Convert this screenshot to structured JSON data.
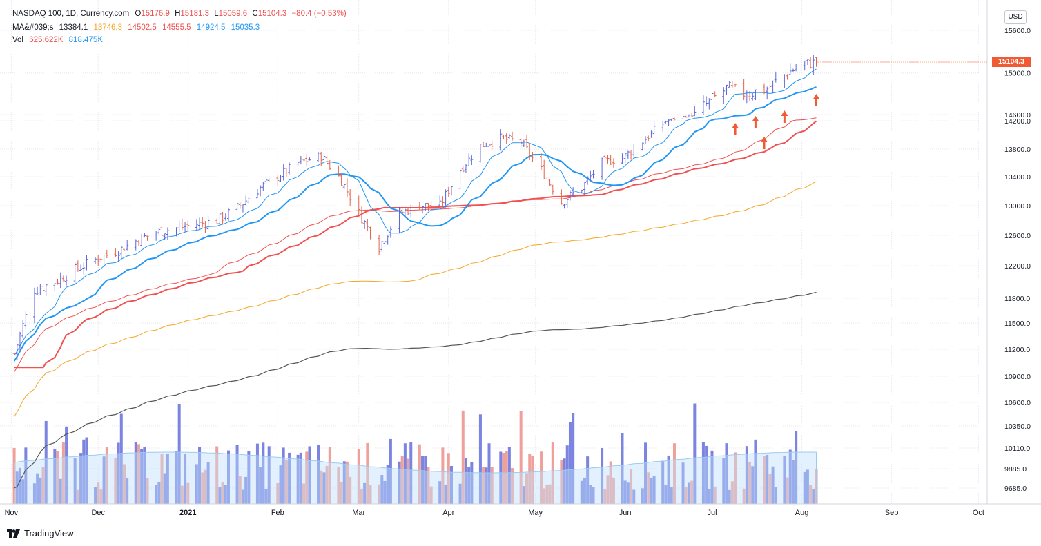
{
  "legend": {
    "symbol": "NASDAQ 100, 1D, Currency.com",
    "o_label": "O",
    "o": "15176.9",
    "h_label": "H",
    "h": "15181.3",
    "l_label": "L",
    "l": "15059.6",
    "c_label": "C",
    "c": "15104.3",
    "change": "−80.4 (−0.53%)",
    "ma_label": "MA&#039;s",
    "ma_values": [
      "13384.1",
      "13746.3",
      "14502.5",
      "14555.5",
      "14924.5",
      "15035.3"
    ],
    "ma_colors": [
      "#131722",
      "#f5a623",
      "#f05050",
      "#f05050",
      "#2196f3",
      "#2196f3"
    ],
    "vol_label": "Vol",
    "vol_values": [
      "625.622K",
      "818.475K"
    ],
    "vol_colors": [
      "#f05050",
      "#2196f3"
    ]
  },
  "currency_badge": "USD",
  "last_price": "15104.3",
  "branding": "TradingView",
  "colors": {
    "up": "#5b65d8",
    "down": "#e2634a",
    "vol_up": "#7b84e0",
    "vol_down": "#f0a09a",
    "ma_fast": "#2196f3",
    "ma_red": "#f05050",
    "ma_orange": "#f5a623",
    "ma_black": "#555555",
    "arrow": "#f05a35",
    "grid": "#e6e8ee"
  },
  "chart_data": {
    "type": "ohlc",
    "title": "NASDAQ 100, 1D, Currency.com",
    "x_ticks": [
      "Nov",
      "Dec",
      "2021",
      "Feb",
      "Mar",
      "Apr",
      "May",
      "Jun",
      "Jul",
      "Aug",
      "Sep",
      "Oct"
    ],
    "y_ticks": [
      "15600.0",
      "15000.0",
      "14600.0",
      "14200.0",
      "13800.0",
      "13400.0",
      "13000.0",
      "12600.0",
      "12200.0",
      "11800.0",
      "11500.0",
      "11200.0",
      "10900.0",
      "10600.0",
      "10350.0",
      "10110.0",
      "9885.0",
      "9685.0"
    ],
    "close_path": [
      [
        "2020-11-02",
        11150
      ],
      [
        "2020-11-09",
        11900
      ],
      [
        "2020-11-16",
        12000
      ],
      [
        "2020-11-23",
        12150
      ],
      [
        "2020-12-01",
        12300
      ],
      [
        "2020-12-08",
        12400
      ],
      [
        "2020-12-15",
        12550
      ],
      [
        "2020-12-22",
        12650
      ],
      [
        "2021-01-04",
        12750
      ],
      [
        "2021-01-11",
        12800
      ],
      [
        "2021-01-19",
        13000
      ],
      [
        "2021-01-26",
        13250
      ],
      [
        "2021-02-01",
        13400
      ],
      [
        "2021-02-08",
        13600
      ],
      [
        "2021-02-16",
        13700
      ],
      [
        "2021-02-23",
        13350
      ],
      [
        "2021-03-01",
        12900
      ],
      [
        "2021-03-08",
        12450
      ],
      [
        "2021-03-15",
        12900
      ],
      [
        "2021-03-22",
        13000
      ],
      [
        "2021-03-29",
        13000
      ],
      [
        "2021-04-05",
        13500
      ],
      [
        "2021-04-12",
        13850
      ],
      [
        "2021-04-19",
        13950
      ],
      [
        "2021-04-26",
        13900
      ],
      [
        "2021-05-03",
        13500
      ],
      [
        "2021-05-10",
        13050
      ],
      [
        "2021-05-17",
        13250
      ],
      [
        "2021-05-24",
        13600
      ],
      [
        "2021-06-01",
        13700
      ],
      [
        "2021-06-08",
        13950
      ],
      [
        "2021-06-15",
        14200
      ],
      [
        "2021-06-22",
        14500
      ],
      [
        "2021-06-29",
        14700
      ],
      [
        "2021-07-06",
        14850
      ],
      [
        "2021-07-13",
        14800
      ],
      [
        "2021-07-20",
        14850
      ],
      [
        "2021-07-27",
        15000
      ],
      [
        "2021-08-02",
        15100
      ],
      [
        "2021-08-06",
        15104.3
      ]
    ],
    "last_bar": {
      "open": 15176.9,
      "high": 15181.3,
      "low": 15059.6,
      "close": 15104.3,
      "change": -80.4,
      "change_pct": -0.53
    },
    "moving_averages": [
      13384.1,
      13746.3,
      14502.5,
      14555.5,
      14924.5,
      15035.3
    ],
    "volume_mas": [
      "625.622K",
      "818.475K"
    ],
    "ylim": [
      9600,
      15800
    ],
    "xlim": [
      "2020-10-30",
      "2021-10-04"
    ],
    "currency": "USD",
    "grid": true,
    "legend_position": "top-left"
  }
}
